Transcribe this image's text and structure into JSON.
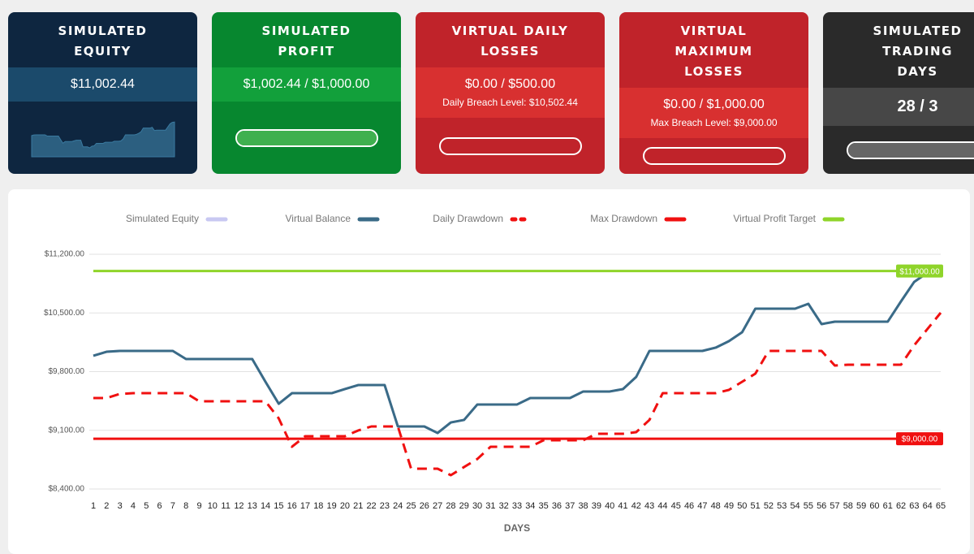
{
  "cards": [
    {
      "title_lines": [
        "SIMULATED",
        "EQUITY"
      ],
      "value": "$11,002.44",
      "header": "#0e2640",
      "band": "#1b4a6b",
      "sparkline": true
    },
    {
      "title_lines": [
        "SIMULATED",
        "PROFIT"
      ],
      "value": "$1,002.44 / $1,000.00",
      "header": "#07872f",
      "band": "#12a03b",
      "progress": 100,
      "progress_color": "#3fb04f"
    },
    {
      "title_lines": [
        "VIRTUAL DAILY",
        "LOSSES"
      ],
      "value": "$0.00 / $500.00",
      "detail": "Daily Breach Level: $10,502.44",
      "header": "#c0232a",
      "band": "#d83030",
      "progress": 0,
      "progress_color": "#e05050"
    },
    {
      "title_lines": [
        "VIRTUAL",
        "MAXIMUM",
        "LOSSES"
      ],
      "value": "$0.00 / $1,000.00",
      "detail": "Max Breach Level: $9,000.00",
      "header": "#c0232a",
      "band": "#d83030",
      "progress": 0,
      "progress_color": "#e05050"
    },
    {
      "title_lines": [
        "SIMULATED",
        "TRADING",
        "DAYS"
      ],
      "value": "28 / 3",
      "header": "#2a2a2a",
      "band": "#474747",
      "progress": 100,
      "progress_color": "#666666"
    }
  ],
  "chart_data": {
    "type": "line",
    "x_label": "DAYS",
    "x": [
      1,
      2,
      3,
      4,
      5,
      6,
      7,
      8,
      9,
      10,
      11,
      12,
      13,
      14,
      15,
      16,
      17,
      18,
      19,
      20,
      21,
      22,
      23,
      24,
      25,
      26,
      27,
      28,
      29,
      30,
      31,
      32,
      33,
      34,
      35,
      36,
      37,
      38,
      39,
      40,
      41,
      42,
      43,
      44,
      45,
      46,
      47,
      48,
      49,
      50,
      51,
      52,
      53,
      54,
      55,
      56,
      57,
      58,
      59,
      60,
      61,
      62,
      63,
      64,
      65
    ],
    "xlim": [
      1,
      65
    ],
    "ylim": [
      8400,
      11200
    ],
    "yticks": [
      {
        "value": 8400,
        "label": "$8,400.00"
      },
      {
        "value": 9100,
        "label": "$9,100.00"
      },
      {
        "value": 9800,
        "label": "$9,800.00"
      },
      {
        "value": 10500,
        "label": "$10,500.00"
      },
      {
        "value": 11200,
        "label": "$11,200.00"
      }
    ],
    "grid": true,
    "legend": "top",
    "series": [
      {
        "name": "Simulated Equity",
        "color": "#c8c8f2",
        "width": 3,
        "values": [
          9990,
          10037,
          10047,
          10047,
          10047,
          10047,
          10047,
          9950,
          9950,
          9950,
          9950,
          9950,
          9950,
          9679,
          9417,
          9543,
          9543,
          9543,
          9543,
          9592,
          9640,
          9640,
          9640,
          9146,
          9146,
          9146,
          9068,
          9194,
          9224,
          9408,
          9408,
          9408,
          9408,
          9485,
          9485,
          9485,
          9485,
          9563,
          9563,
          9563,
          9592,
          9737,
          10047,
          10047,
          10047,
          10047,
          10047,
          10086,
          10163,
          10270,
          10551,
          10551,
          10551,
          10551,
          10609,
          10367,
          10396,
          10396,
          10396,
          10396,
          10396,
          10638,
          10871,
          10980,
          11002.44
        ]
      },
      {
        "name": "Virtual Balance",
        "color": "#3a6b87",
        "width": 3,
        "values": [
          9990,
          10037,
          10047,
          10047,
          10047,
          10047,
          10047,
          9950,
          9950,
          9950,
          9950,
          9950,
          9950,
          9679,
          9417,
          9543,
          9543,
          9543,
          9543,
          9592,
          9640,
          9640,
          9640,
          9146,
          9146,
          9146,
          9068,
          9194,
          9224,
          9408,
          9408,
          9408,
          9408,
          9485,
          9485,
          9485,
          9485,
          9563,
          9563,
          9563,
          9592,
          9737,
          10047,
          10047,
          10047,
          10047,
          10047,
          10086,
          10163,
          10270,
          10551,
          10551,
          10551,
          10551,
          10609,
          10367,
          10396,
          10396,
          10396,
          10396,
          10396,
          10638,
          10871,
          10980,
          11002.44
        ]
      },
      {
        "name": "Daily Drawdown",
        "color": "#f01010",
        "width": 3,
        "dashed": true,
        "values": [
          9485,
          9485,
          9534,
          9543,
          9543,
          9543,
          9543,
          9543,
          9446,
          9446,
          9446,
          9446,
          9446,
          9446,
          9243,
          8904,
          9030,
          9030,
          9030,
          9030,
          9098,
          9146,
          9146,
          9146,
          8642,
          8642,
          8642,
          8565,
          8662,
          8758,
          8904,
          8904,
          8904,
          8904,
          8981,
          8981,
          8981,
          8981,
          9059,
          9059,
          9059,
          9078,
          9224,
          9543,
          9543,
          9543,
          9543,
          9543,
          9582,
          9679,
          9776,
          10047,
          10047,
          10047,
          10047,
          10047,
          9873,
          9882,
          9882,
          9882,
          9882,
          9882,
          10115,
          10309,
          10502.44
        ]
      },
      {
        "name": "Max Drawdown",
        "color": "#f01010",
        "width": 3,
        "value": 9000,
        "label": "$9,000.00"
      },
      {
        "name": "Virtual Profit Target",
        "color": "#8fd42a",
        "width": 3,
        "value": 11000,
        "label": "$11,000.00"
      }
    ]
  }
}
